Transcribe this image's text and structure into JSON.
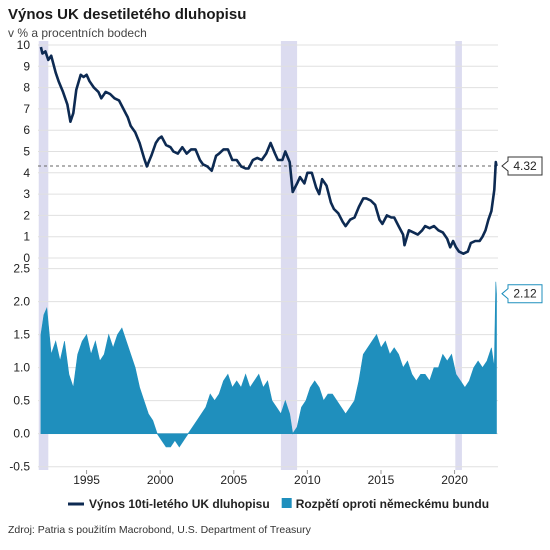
{
  "title": "Výnos UK desetiletého dluhopisu",
  "subtitle": "v % a procentních bodech",
  "source": "Zdroj: Patria s použitím Macrobond, U.S. Department of Treasury",
  "colors": {
    "yield_line": "#0d2a52",
    "spread_area": "#1f8fbd",
    "recession_band": "#dcdcf0",
    "gridline": "#e0e0e0"
  },
  "chart_data": [
    {
      "type": "line",
      "name": "yield-panel",
      "series": [
        {
          "name": "Výnos 10ti-letého UK dluhopisu",
          "points": [
            [
              1991.9,
              9.9
            ],
            [
              1992.0,
              9.6
            ],
            [
              1992.2,
              9.7
            ],
            [
              1992.4,
              9.3
            ],
            [
              1992.6,
              9.5
            ],
            [
              1992.9,
              8.7
            ],
            [
              1993.1,
              8.3
            ],
            [
              1993.4,
              7.8
            ],
            [
              1993.7,
              7.2
            ],
            [
              1993.9,
              6.4
            ],
            [
              1994.1,
              6.8
            ],
            [
              1994.3,
              7.9
            ],
            [
              1994.6,
              8.6
            ],
            [
              1994.8,
              8.5
            ],
            [
              1995.0,
              8.6
            ],
            [
              1995.2,
              8.3
            ],
            [
              1995.5,
              8.0
            ],
            [
              1995.8,
              7.8
            ],
            [
              1996.0,
              7.5
            ],
            [
              1996.3,
              7.8
            ],
            [
              1996.6,
              7.7
            ],
            [
              1996.9,
              7.5
            ],
            [
              1997.2,
              7.4
            ],
            [
              1997.5,
              7.0
            ],
            [
              1997.8,
              6.6
            ],
            [
              1998.0,
              6.2
            ],
            [
              1998.3,
              5.9
            ],
            [
              1998.6,
              5.4
            ],
            [
              1998.9,
              4.7
            ],
            [
              1999.1,
              4.3
            ],
            [
              1999.4,
              4.8
            ],
            [
              1999.7,
              5.4
            ],
            [
              1999.9,
              5.6
            ],
            [
              2000.1,
              5.7
            ],
            [
              2000.4,
              5.3
            ],
            [
              2000.7,
              5.2
            ],
            [
              2000.9,
              5.0
            ],
            [
              2001.2,
              4.9
            ],
            [
              2001.5,
              5.2
            ],
            [
              2001.8,
              4.9
            ],
            [
              2002.1,
              5.1
            ],
            [
              2002.4,
              5.1
            ],
            [
              2002.7,
              4.6
            ],
            [
              2002.9,
              4.4
            ],
            [
              2003.2,
              4.3
            ],
            [
              2003.5,
              4.1
            ],
            [
              2003.8,
              4.8
            ],
            [
              2004.0,
              4.9
            ],
            [
              2004.3,
              5.1
            ],
            [
              2004.6,
              5.1
            ],
            [
              2004.9,
              4.6
            ],
            [
              2005.2,
              4.6
            ],
            [
              2005.5,
              4.3
            ],
            [
              2005.8,
              4.2
            ],
            [
              2006.0,
              4.2
            ],
            [
              2006.3,
              4.6
            ],
            [
              2006.6,
              4.7
            ],
            [
              2006.9,
              4.6
            ],
            [
              2007.2,
              4.9
            ],
            [
              2007.5,
              5.4
            ],
            [
              2007.8,
              4.9
            ],
            [
              2008.0,
              4.6
            ],
            [
              2008.3,
              4.6
            ],
            [
              2008.5,
              5.0
            ],
            [
              2008.8,
              4.5
            ],
            [
              2009.0,
              3.1
            ],
            [
              2009.3,
              3.5
            ],
            [
              2009.5,
              3.8
            ],
            [
              2009.8,
              3.5
            ],
            [
              2010.0,
              4.0
            ],
            [
              2010.3,
              4.0
            ],
            [
              2010.6,
              3.3
            ],
            [
              2010.8,
              3.0
            ],
            [
              2011.0,
              3.7
            ],
            [
              2011.3,
              3.4
            ],
            [
              2011.6,
              2.6
            ],
            [
              2011.8,
              2.3
            ],
            [
              2012.1,
              2.1
            ],
            [
              2012.4,
              1.7
            ],
            [
              2012.6,
              1.5
            ],
            [
              2012.9,
              1.8
            ],
            [
              2013.2,
              1.9
            ],
            [
              2013.5,
              2.4
            ],
            [
              2013.8,
              2.8
            ],
            [
              2014.0,
              2.8
            ],
            [
              2014.3,
              2.7
            ],
            [
              2014.6,
              2.5
            ],
            [
              2014.9,
              1.8
            ],
            [
              2015.1,
              1.6
            ],
            [
              2015.4,
              2.0
            ],
            [
              2015.7,
              1.9
            ],
            [
              2015.9,
              1.9
            ],
            [
              2016.2,
              1.5
            ],
            [
              2016.5,
              1.1
            ],
            [
              2016.6,
              0.6
            ],
            [
              2016.9,
              1.3
            ],
            [
              2017.2,
              1.2
            ],
            [
              2017.5,
              1.1
            ],
            [
              2017.8,
              1.3
            ],
            [
              2018.0,
              1.5
            ],
            [
              2018.3,
              1.4
            ],
            [
              2018.6,
              1.5
            ],
            [
              2018.9,
              1.3
            ],
            [
              2019.2,
              1.2
            ],
            [
              2019.5,
              0.9
            ],
            [
              2019.7,
              0.5
            ],
            [
              2019.9,
              0.8
            ],
            [
              2020.1,
              0.5
            ],
            [
              2020.3,
              0.3
            ],
            [
              2020.6,
              0.2
            ],
            [
              2020.9,
              0.3
            ],
            [
              2021.1,
              0.7
            ],
            [
              2021.4,
              0.8
            ],
            [
              2021.7,
              0.8
            ],
            [
              2021.9,
              1.0
            ],
            [
              2022.1,
              1.3
            ],
            [
              2022.3,
              1.8
            ],
            [
              2022.5,
              2.2
            ],
            [
              2022.7,
              3.2
            ],
            [
              2022.8,
              4.5
            ],
            [
              2022.85,
              4.32
            ]
          ]
        }
      ],
      "yticks": [
        0,
        1,
        2,
        3,
        4,
        5,
        6,
        7,
        8,
        9,
        10
      ],
      "ylim": [
        0,
        10
      ],
      "reference_line": 4.32,
      "last_value_label": "4.32"
    },
    {
      "type": "area",
      "name": "spread-panel",
      "series": [
        {
          "name": "Rozpětí oproti německému bundu",
          "points": [
            [
              1991.9,
              1.5
            ],
            [
              1992.1,
              1.8
            ],
            [
              1992.3,
              1.9
            ],
            [
              1992.6,
              1.2
            ],
            [
              1992.9,
              1.4
            ],
            [
              1993.2,
              1.1
            ],
            [
              1993.5,
              1.4
            ],
            [
              1993.8,
              0.9
            ],
            [
              1994.1,
              0.7
            ],
            [
              1994.4,
              1.2
            ],
            [
              1994.7,
              1.4
            ],
            [
              1995.0,
              1.5
            ],
            [
              1995.3,
              1.2
            ],
            [
              1995.6,
              1.4
            ],
            [
              1995.9,
              1.1
            ],
            [
              1996.2,
              1.2
            ],
            [
              1996.5,
              1.5
            ],
            [
              1996.8,
              1.3
            ],
            [
              1997.1,
              1.5
            ],
            [
              1997.4,
              1.6
            ],
            [
              1997.7,
              1.4
            ],
            [
              1998.0,
              1.2
            ],
            [
              1998.3,
              1.0
            ],
            [
              1998.6,
              0.7
            ],
            [
              1998.9,
              0.5
            ],
            [
              1999.2,
              0.3
            ],
            [
              1999.5,
              0.2
            ],
            [
              1999.8,
              0.0
            ],
            [
              2000.1,
              -0.1
            ],
            [
              2000.4,
              -0.2
            ],
            [
              2000.7,
              -0.2
            ],
            [
              2001.0,
              -0.1
            ],
            [
              2001.3,
              -0.2
            ],
            [
              2001.6,
              -0.1
            ],
            [
              2001.9,
              0.0
            ],
            [
              2002.2,
              0.1
            ],
            [
              2002.5,
              0.2
            ],
            [
              2002.8,
              0.3
            ],
            [
              2003.1,
              0.4
            ],
            [
              2003.4,
              0.6
            ],
            [
              2003.7,
              0.5
            ],
            [
              2004.0,
              0.6
            ],
            [
              2004.3,
              0.8
            ],
            [
              2004.6,
              0.9
            ],
            [
              2004.9,
              0.7
            ],
            [
              2005.2,
              0.8
            ],
            [
              2005.5,
              0.7
            ],
            [
              2005.8,
              0.9
            ],
            [
              2006.1,
              0.7
            ],
            [
              2006.4,
              0.8
            ],
            [
              2006.7,
              0.9
            ],
            [
              2007.0,
              0.7
            ],
            [
              2007.3,
              0.8
            ],
            [
              2007.6,
              0.5
            ],
            [
              2007.9,
              0.4
            ],
            [
              2008.2,
              0.3
            ],
            [
              2008.5,
              0.5
            ],
            [
              2008.8,
              0.3
            ],
            [
              2009.0,
              0.0
            ],
            [
              2009.3,
              0.1
            ],
            [
              2009.6,
              0.4
            ],
            [
              2009.9,
              0.5
            ],
            [
              2010.2,
              0.7
            ],
            [
              2010.5,
              0.8
            ],
            [
              2010.8,
              0.7
            ],
            [
              2011.1,
              0.5
            ],
            [
              2011.4,
              0.6
            ],
            [
              2011.7,
              0.6
            ],
            [
              2012.0,
              0.5
            ],
            [
              2012.3,
              0.4
            ],
            [
              2012.6,
              0.3
            ],
            [
              2012.9,
              0.4
            ],
            [
              2013.2,
              0.5
            ],
            [
              2013.5,
              0.8
            ],
            [
              2013.8,
              1.2
            ],
            [
              2014.1,
              1.3
            ],
            [
              2014.4,
              1.4
            ],
            [
              2014.7,
              1.5
            ],
            [
              2015.0,
              1.3
            ],
            [
              2015.3,
              1.4
            ],
            [
              2015.6,
              1.2
            ],
            [
              2015.9,
              1.3
            ],
            [
              2016.2,
              1.2
            ],
            [
              2016.5,
              1.0
            ],
            [
              2016.8,
              1.1
            ],
            [
              2017.1,
              0.9
            ],
            [
              2017.4,
              0.8
            ],
            [
              2017.7,
              0.9
            ],
            [
              2018.0,
              0.9
            ],
            [
              2018.3,
              0.8
            ],
            [
              2018.6,
              1.0
            ],
            [
              2018.9,
              1.0
            ],
            [
              2019.2,
              1.2
            ],
            [
              2019.5,
              1.1
            ],
            [
              2019.8,
              1.2
            ],
            [
              2020.1,
              0.9
            ],
            [
              2020.4,
              0.8
            ],
            [
              2020.7,
              0.7
            ],
            [
              2021.0,
              0.8
            ],
            [
              2021.3,
              1.0
            ],
            [
              2021.6,
              1.1
            ],
            [
              2021.9,
              1.0
            ],
            [
              2022.2,
              1.1
            ],
            [
              2022.5,
              1.3
            ],
            [
              2022.7,
              1.0
            ],
            [
              2022.8,
              2.3
            ],
            [
              2022.85,
              2.12
            ]
          ]
        }
      ],
      "yticks": [
        -0.5,
        0.0,
        0.5,
        1.0,
        1.5,
        2.0,
        2.5
      ],
      "ytick_labels": [
        "-0.5",
        "0.0",
        "0.5",
        "1.0",
        "1.5",
        "2.0",
        "2.5"
      ],
      "ylim": [
        -0.55,
        2.6
      ],
      "last_value_label": "2.12"
    }
  ],
  "x_axis": {
    "xlim": [
      1991.7,
      2022.95
    ],
    "ticks": [
      1995,
      2000,
      2005,
      2010,
      2015,
      2020
    ],
    "tick_labels": [
      "1995",
      "2000",
      "2005",
      "2010",
      "2015",
      "2020"
    ]
  },
  "recession_bands": [
    [
      1991.75,
      1992.4
    ],
    [
      2008.2,
      2009.3
    ],
    [
      2020.05,
      2020.5
    ]
  ],
  "legend": {
    "placement": "bottom",
    "items": [
      {
        "label": "Výnos 10ti-letého UK dluhopisu",
        "kind": "line"
      },
      {
        "label": "Rozpětí oproti německému bundu",
        "kind": "area"
      }
    ]
  }
}
